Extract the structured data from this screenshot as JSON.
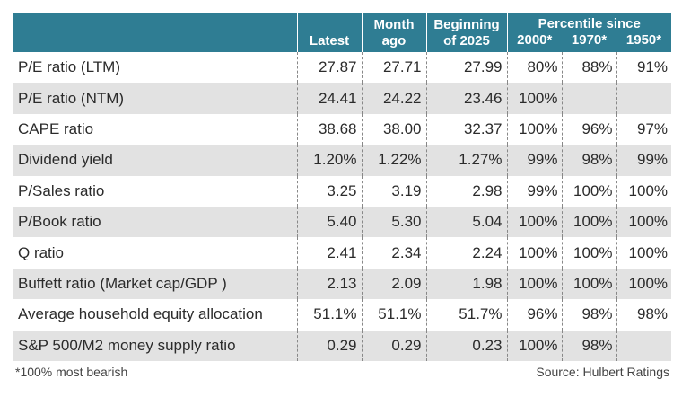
{
  "chart_data": {
    "type": "table",
    "columns": {
      "latest": "Latest",
      "month_ago": [
        "Month",
        "ago"
      ],
      "beginning": [
        "Beginning",
        "of 2025"
      ],
      "percentile_title": "Percentile since",
      "years": [
        "2000*",
        "1970*",
        "1950*"
      ]
    },
    "rows": [
      {
        "label": "P/E ratio (LTM)",
        "latest": "27.87",
        "month_ago": "27.71",
        "beginning": "27.99",
        "p2000": "80%",
        "p1970": "88%",
        "p1950": "91%"
      },
      {
        "label": "P/E ratio (NTM)",
        "latest": "24.41",
        "month_ago": "24.22",
        "beginning": "23.46",
        "p2000": "100%",
        "p1970": "",
        "p1950": ""
      },
      {
        "label": "CAPE ratio",
        "latest": "38.68",
        "month_ago": "38.00",
        "beginning": "32.37",
        "p2000": "100%",
        "p1970": "96%",
        "p1950": "97%"
      },
      {
        "label": "Dividend yield",
        "latest": "1.20%",
        "month_ago": "1.22%",
        "beginning": "1.27%",
        "p2000": "99%",
        "p1970": "98%",
        "p1950": "99%"
      },
      {
        "label": "P/Sales ratio",
        "latest": "3.25",
        "month_ago": "3.19",
        "beginning": "2.98",
        "p2000": "99%",
        "p1970": "100%",
        "p1950": "100%"
      },
      {
        "label": "P/Book ratio",
        "latest": "5.40",
        "month_ago": "5.30",
        "beginning": "5.04",
        "p2000": "100%",
        "p1970": "100%",
        "p1950": "100%"
      },
      {
        "label": "Q ratio",
        "latest": "2.41",
        "month_ago": "2.34",
        "beginning": "2.24",
        "p2000": "100%",
        "p1970": "100%",
        "p1950": "100%"
      },
      {
        "label": "Buffett ratio (Market cap/GDP )",
        "latest": "2.13",
        "month_ago": "2.09",
        "beginning": "1.98",
        "p2000": "100%",
        "p1970": "100%",
        "p1950": "100%"
      },
      {
        "label": "Average household equity allocation",
        "latest": "51.1%",
        "month_ago": "51.1%",
        "beginning": "51.7%",
        "p2000": "96%",
        "p1970": "98%",
        "p1950": "98%"
      },
      {
        "label": "S&P 500/M2 money supply ratio",
        "latest": "0.29",
        "month_ago": "0.29",
        "beginning": "0.23",
        "p2000": "100%",
        "p1970": "98%",
        "p1950": ""
      }
    ],
    "footnote": "*100% most bearish",
    "source": "Source: Hulbert Ratings",
    "colors": {
      "header_bg": "#2f7d93",
      "row_shade": "#e2e2e2"
    }
  }
}
